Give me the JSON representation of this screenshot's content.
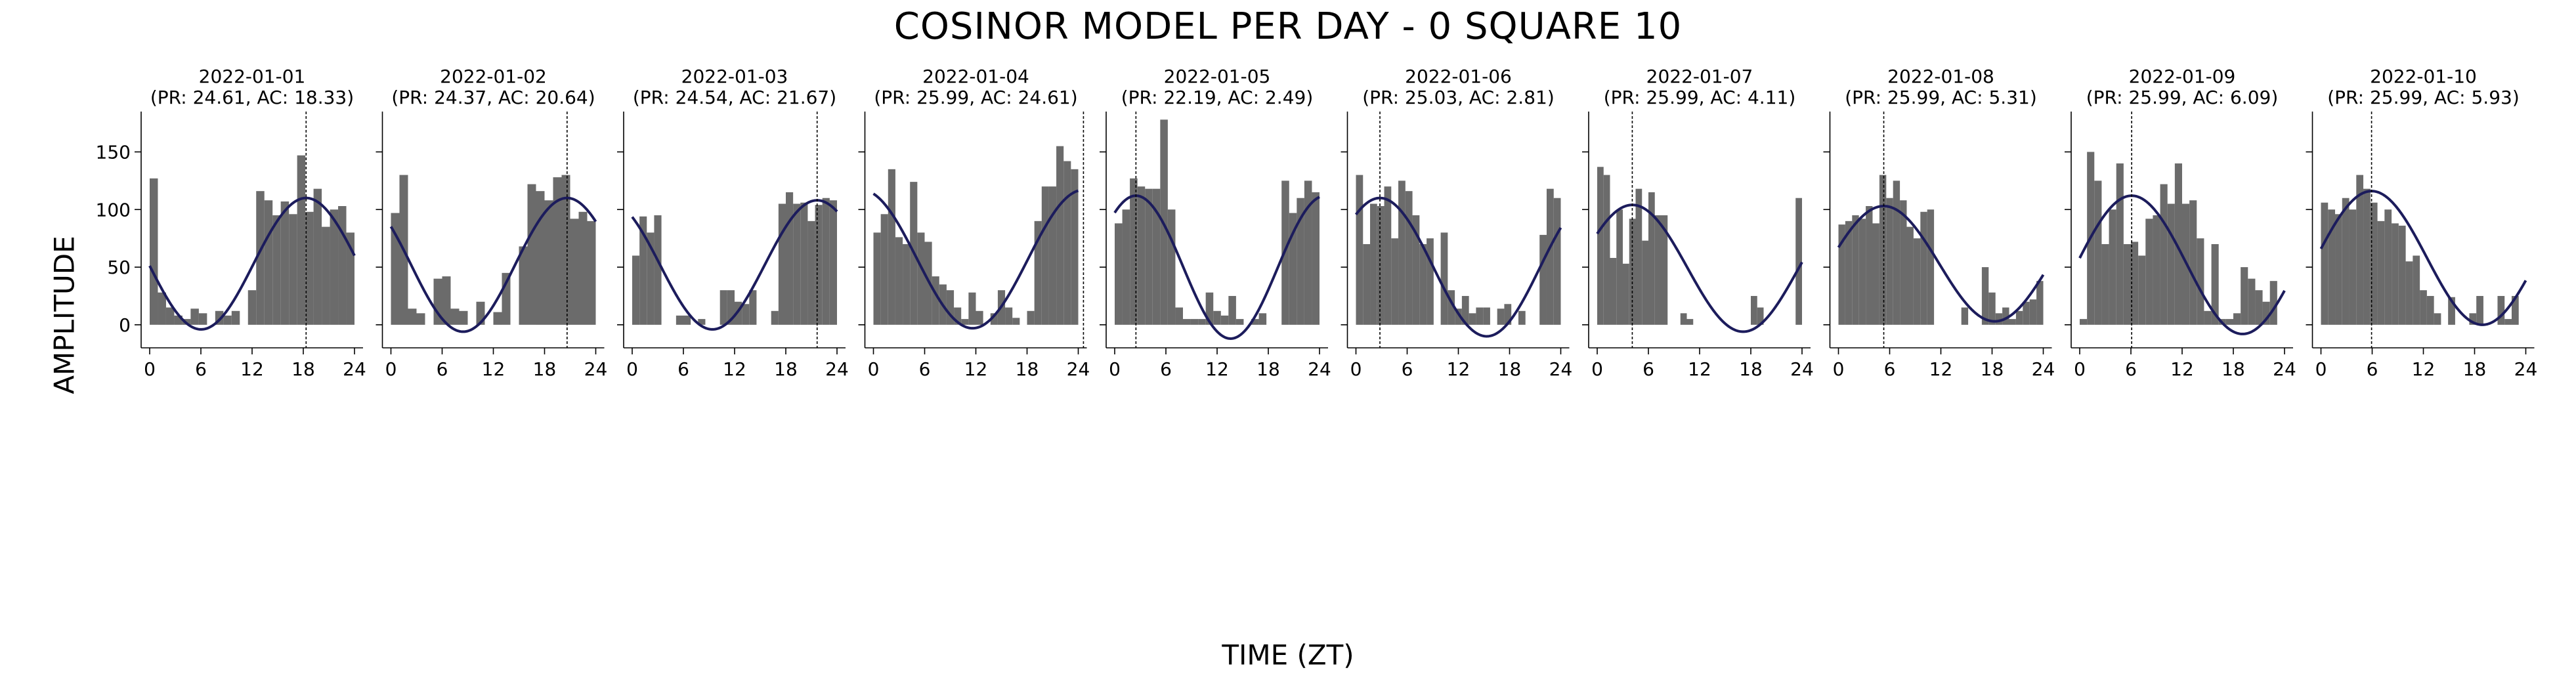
{
  "figure": {
    "title": "COSINOR MODEL PER DAY - 0 SQUARE 10",
    "xlabel": "TIME (ZT)",
    "ylabel": "AMPLITUDE"
  },
  "colors": {
    "bars": "#6b6b6b",
    "curve": "#1c1c5c",
    "axes": "#000000"
  },
  "chart_data": {
    "type": "bar",
    "grid": false,
    "xlim": [
      -1,
      25
    ],
    "ylim": [
      -20,
      185
    ],
    "xticks": [
      0,
      6,
      12,
      18,
      24
    ],
    "yticks": [
      0,
      50,
      100,
      150
    ],
    "panels": [
      {
        "date": "2022-01-01",
        "stats": "(PR: 24.61, AC: 18.33)",
        "period": 24.61,
        "acrophase": 18.33,
        "mesor": 53,
        "amplitude": 57,
        "bars": [
          127,
          28,
          15,
          8,
          5,
          14,
          10,
          0,
          12,
          8,
          12,
          0,
          30,
          116,
          108,
          95,
          107,
          96,
          147,
          98,
          118,
          85,
          100,
          103,
          80
        ]
      },
      {
        "date": "2022-01-02",
        "stats": "(PR: 24.37, AC: 20.64)",
        "period": 24.37,
        "acrophase": 20.64,
        "mesor": 52,
        "amplitude": 58,
        "bars": [
          97,
          130,
          14,
          10,
          0,
          40,
          42,
          14,
          12,
          0,
          20,
          0,
          11,
          45,
          0,
          68,
          122,
          116,
          108,
          128,
          130,
          92,
          98,
          90
        ]
      },
      {
        "date": "2022-01-03",
        "stats": "(PR: 24.54, AC: 21.67)",
        "period": 24.54,
        "acrophase": 21.67,
        "mesor": 52,
        "amplitude": 56,
        "bars": [
          60,
          94,
          80,
          95,
          0,
          0,
          8,
          8,
          0,
          5,
          0,
          0,
          30,
          30,
          20,
          18,
          30,
          0,
          0,
          12,
          105,
          115,
          105,
          106,
          90,
          104,
          110,
          108
        ]
      },
      {
        "date": "2022-01-04",
        "stats": "(PR: 25.99, AC: 24.61)",
        "period": 25.99,
        "acrophase": 24.61,
        "mesor": 57,
        "amplitude": 60,
        "bars": [
          80,
          96,
          135,
          76,
          70,
          124,
          80,
          72,
          42,
          35,
          30,
          15,
          5,
          28,
          12,
          0,
          10,
          30,
          15,
          6,
          0,
          12,
          90,
          120,
          120,
          155,
          142,
          135
        ]
      },
      {
        "date": "2022-01-05",
        "stats": "(PR: 22.19, AC: 2.49)",
        "period": 22.19,
        "acrophase": 2.49,
        "mesor": 50,
        "amplitude": 62,
        "bars": [
          88,
          100,
          127,
          120,
          118,
          118,
          178,
          100,
          15,
          5,
          5,
          5,
          28,
          12,
          8,
          25,
          5,
          0,
          5,
          10,
          0,
          0,
          125,
          97,
          110,
          125,
          115
        ]
      },
      {
        "date": "2022-01-06",
        "stats": "(PR: 25.03, AC: 2.81)",
        "period": 25.03,
        "acrophase": 2.81,
        "mesor": 50,
        "amplitude": 60,
        "bars": [
          130,
          70,
          105,
          103,
          120,
          75,
          125,
          116,
          95,
          70,
          75,
          0,
          80,
          30,
          14,
          25,
          10,
          15,
          15,
          0,
          14,
          18,
          0,
          12,
          0,
          0,
          78,
          118,
          110
        ]
      },
      {
        "date": "2022-01-07",
        "stats": "(PR: 25.99, AC: 4.11)",
        "period": 25.99,
        "acrophase": 4.11,
        "mesor": 49,
        "amplitude": 55,
        "bars": [
          137,
          130,
          58,
          100,
          53,
          92,
          118,
          73,
          115,
          95,
          95,
          0,
          0,
          10,
          5,
          0,
          0,
          0,
          0,
          0,
          0,
          0,
          0,
          0,
          25,
          15,
          0,
          0,
          0,
          0,
          0,
          110
        ]
      },
      {
        "date": "2022-01-08",
        "stats": "(PR: 25.99, AC: 5.31)",
        "period": 25.99,
        "acrophase": 5.31,
        "mesor": 53,
        "amplitude": 50,
        "bars": [
          87,
          90,
          95,
          92,
          103,
          88,
          130,
          110,
          125,
          108,
          85,
          75,
          98,
          100,
          0,
          0,
          0,
          0,
          15,
          0,
          0,
          50,
          28,
          10,
          15,
          5,
          12,
          20,
          22,
          38
        ]
      },
      {
        "date": "2022-01-09",
        "stats": "(PR: 25.99, AC: 6.09)",
        "period": 25.99,
        "acrophase": 6.09,
        "mesor": 52,
        "amplitude": 60,
        "bars": [
          5,
          150,
          125,
          70,
          100,
          140,
          70,
          72,
          60,
          92,
          95,
          122,
          105,
          140,
          105,
          108,
          75,
          12,
          70,
          5,
          5,
          10,
          50,
          40,
          30,
          20,
          38,
          0
        ]
      },
      {
        "date": "2022-01-10",
        "stats": "(PR: 25.99, AC: 5.93)",
        "period": 25.99,
        "acrophase": 5.93,
        "mesor": 58,
        "amplitude": 58,
        "bars": [
          106,
          100,
          96,
          110,
          100,
          130,
          118,
          106,
          90,
          100,
          88,
          86,
          55,
          60,
          30,
          25,
          10,
          0,
          24,
          0,
          0,
          10,
          25,
          0,
          0,
          25,
          5,
          25,
          0
        ]
      }
    ]
  }
}
